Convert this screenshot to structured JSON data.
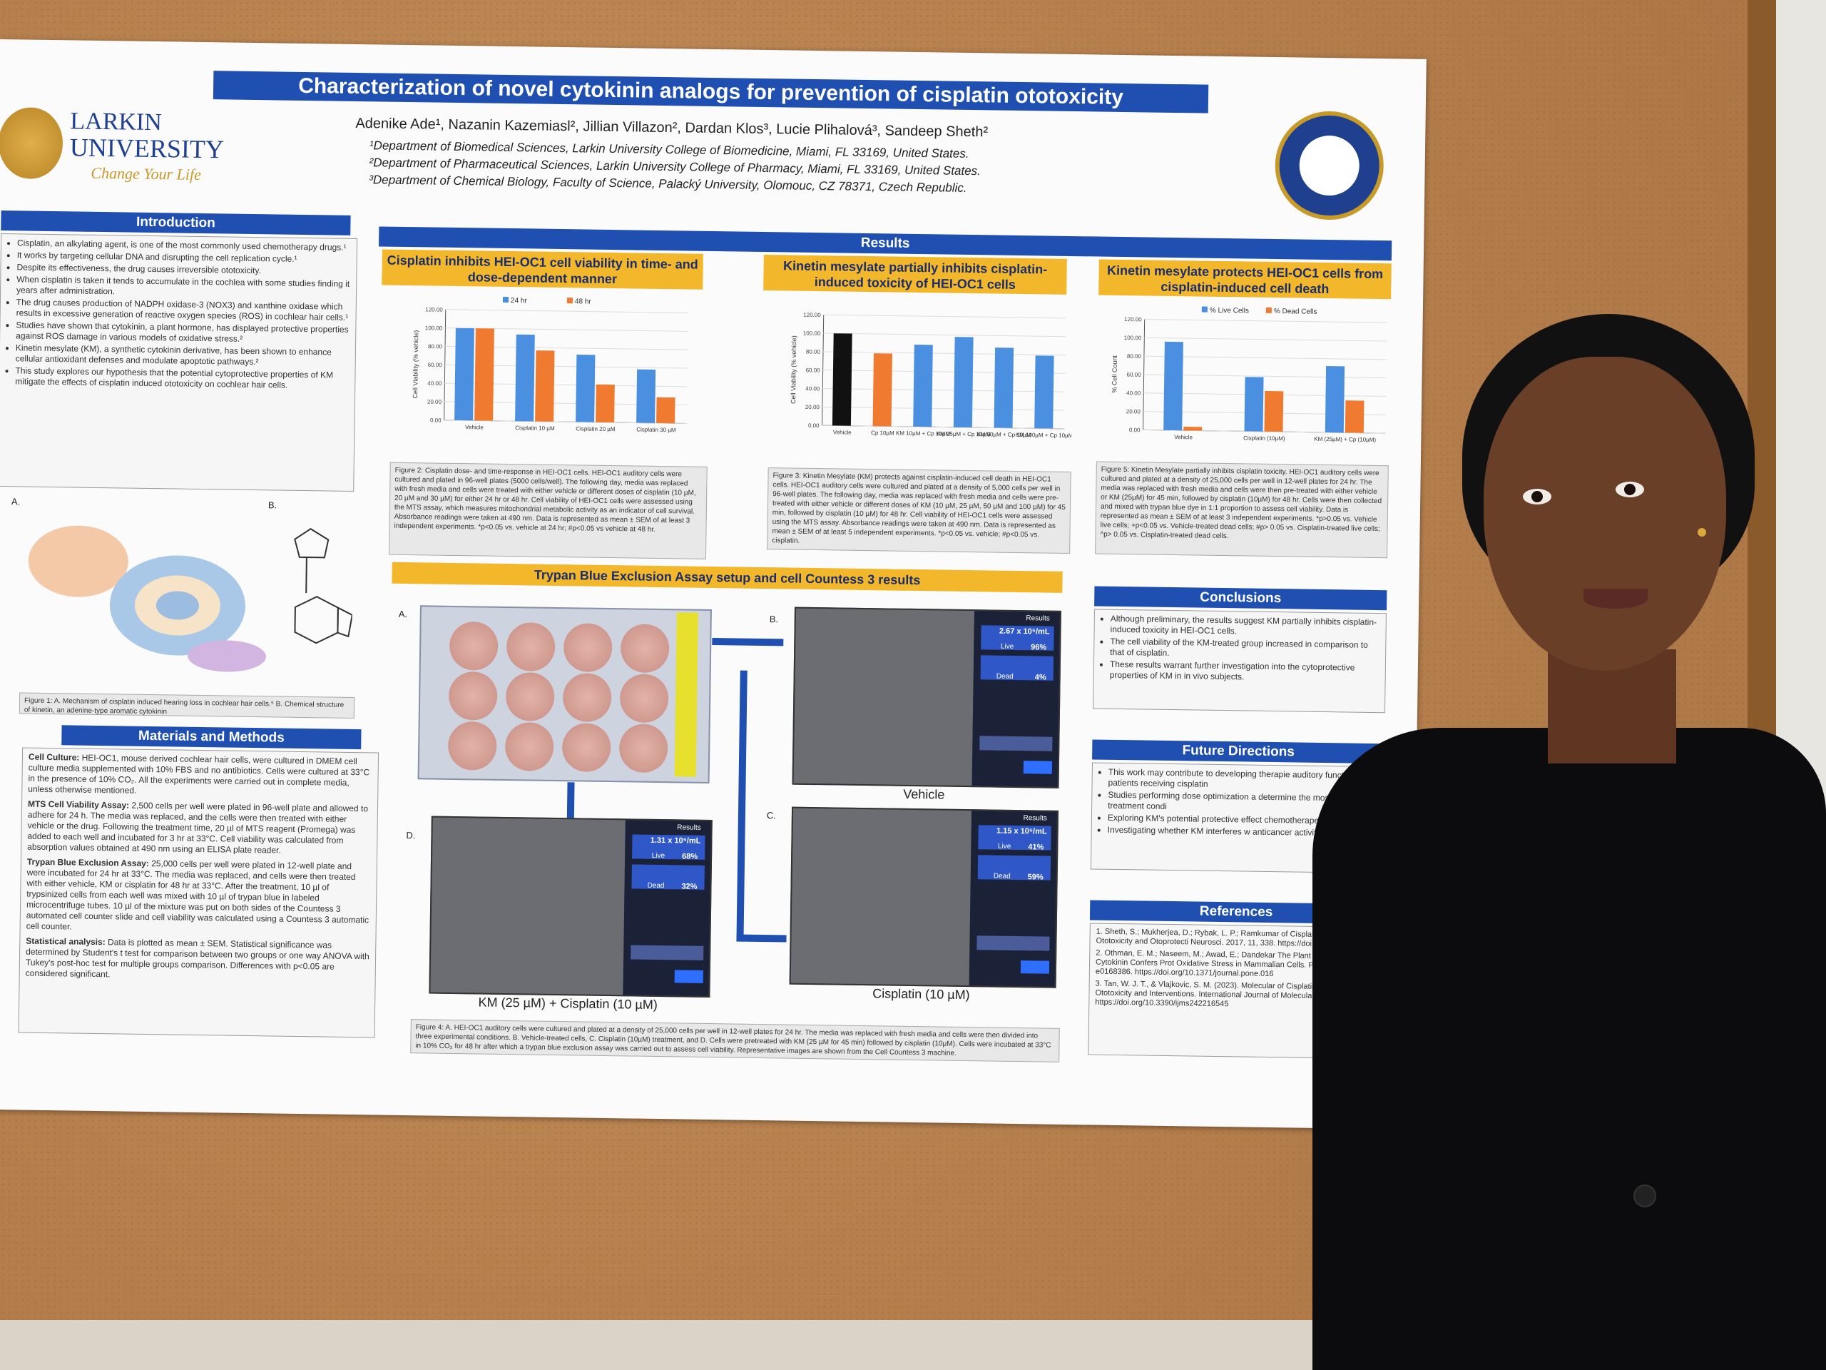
{
  "poster": {
    "title": "Characterization of novel cytokinin analogs for prevention of cisplatin ototoxicity",
    "authors": "Adenike Ade¹, Nazanin Kazemiasl², Jillian Villazon², Dardan Klos³, Lucie Plihalová³, Sandeep Sheth²",
    "affiliations": [
      "¹Department of Biomedical Sciences, Larkin University College of Biomedicine, Miami, FL 33169, United States.",
      "²Department of Pharmaceutical Sciences, Larkin University College of Pharmacy, Miami, FL 33169, United States.",
      "³Department of Chemical Biology, Faculty of Science, Palacký University, Olomouc, CZ 78371, Czech Republic."
    ],
    "logo": {
      "line1": "LARKIN",
      "line2": "UNIVERSITY",
      "tagline": "Change Your Life"
    },
    "sections": {
      "introduction": "Introduction",
      "results": "Results",
      "materials": "Materials and Methods",
      "conclusions": "Conclusions",
      "future": "Future Directions",
      "references": "References"
    },
    "intro_items": [
      "Cisplatin, an alkylating agent, is one of the most commonly used chemotherapy drugs.¹",
      "It works by targeting cellular DNA and disrupting the cell replication cycle.¹",
      "Despite its effectiveness, the drug causes irreversible ototoxicity.",
      "When cisplatin is taken it tends to accumulate in the cochlea with some studies finding it years after administration.",
      "The drug causes production of NADPH oxidase-3 (NOX3) and xanthine oxidase which results in excessive generation of reactive oxygen species (ROS) in cochlear hair cells.¹",
      "Studies have shown that cytokinin, a plant hormone, has displayed protective properties against ROS damage in various models of oxidative stress.²",
      "Kinetin mesylate (KM), a synthetic cytokinin derivative, has been shown to enhance cellular antioxidant defenses and modulate apoptotic pathways.²",
      "This study explores our hypothesis that the potential cytoprotective properties of KM mitigate the effects of cisplatin induced ototoxicity on cochlear hair cells."
    ],
    "fig1_caption": "Figure 1: A. Mechanism of cisplatin induced hearing loss in cochlear hair cells.⁵ B. Chemical structure of kinetin, an adenine-type aromatic cytokinin",
    "results_subheads": [
      "Cisplatin inhibits HEI-OC1 cell viability in time- and dose-dependent manner",
      "Kinetin mesylate partially inhibits cisplatin-induced toxicity of HEI-OC1 cells",
      "Kinetin mesylate protects HEI-OC1 cells from cisplatin-induced cell death"
    ],
    "trypan_head": "Trypan Blue Exclusion Assay setup and cell Countess 3 results",
    "methods": [
      {
        "head": "Cell Culture:",
        "text": "HEI-OC1, mouse derived cochlear hair cells, were cultured in DMEM cell culture media supplemented with 10% FBS and no antibiotics. Cells were cultured at 33°C in the presence of 10% CO₂. All the experiments were carried out in complete media, unless otherwise mentioned."
      },
      {
        "head": "MTS Cell Viability Assay:",
        "text": "2,500 cells per well were plated in 96-well plate and allowed to adhere for 24 h. The media was replaced, and the cells were then treated with either vehicle or the drug. Following the treatment time, 20 µl of MTS reagent (Promega) was added to each well and incubated for 3 hr at 33°C. Cell viability was calculated from absorption values obtained at 490 nm using an ELISA plate reader."
      },
      {
        "head": "Trypan Blue Exclusion Assay:",
        "text": "25,000 cells per well were plated in 12-well plate and were incubated for 24 hr at 33°C. The media was replaced, and cells were then treated with either vehicle, KM or cisplatin for 48 hr at 33°C. After the treatment, 10 µl of trypsinized cells from each well was mixed with 10 µl of trypan blue in labeled microcentrifuge tubes. 10 µl of the mixture was put on both sides of the Countess 3 automated cell counter slide and cell viability was calculated using a Countess 3 automatic cell counter."
      },
      {
        "head": "Statistical analysis:",
        "text": "Data is plotted as mean ± SEM. Statistical significance was determined by Student's t test for comparison between two groups or one way ANOVA with Tukey's post-hoc test for multiple groups comparison. Differences with p<0.05 are considered significant."
      }
    ],
    "conclusions": [
      "Although preliminary, the results suggest KM partially inhibits cisplatin-induced toxicity in HEI-OC1 cells.",
      "The cell viability of the KM-treated group increased in comparison to that of cisplatin.",
      "These results warrant further investigation into the cytoprotective properties of KM in in vivo subjects."
    ],
    "future": [
      "This work may contribute to developing therapie auditory function in patients receiving cisplatin",
      "Studies performing dose optimization a determine the most effective treatment condi",
      "Exploring KM's potential protective effect chemotherapeutic toxicities.",
      "Investigating whether KM interferes w anticancer activity."
    ],
    "references": [
      "1. Sheth, S.; Mukherjea, D.; Rybak, L. P.; Ramkumar of Cisplatin-Induced Ototoxicity and Otoprotecti Neurosci. 2017, 11, 338. https://doi.org/10.3389/fn",
      "2. Othman, E. M.; Naseem, M.; Awad, E.; Dandekar The Plant Hormone Cytokinin Confers Prot Oxidative Stress in Mammalian Cells. PLoS One e0168386. https://doi.org/10.1371/journal.pone.016",
      "3. Tan, W. J. T., & Vlajkovic, S. M. (2023). Molecular of Cisplatin-Induced Ototoxicity and Interventions. International Journal of Molecular Sci 16545. https://doi.org/10.3390/ijms242216545"
    ],
    "fig2_caption": "Figure 2: Cisplatin dose- and time-response in HEI-OC1 cells. HEI-OC1 auditory cells were cultured and plated in 96-well plates (5000 cells/well). The following day, media was replaced with fresh media and cells were treated with either vehicle or different doses of cisplatin (10 µM, 20 µM and 30 µM) for either 24 hr or 48 hr. Cell viability of HEI-OC1 cells were assessed using the MTS assay, which measures mitochondrial metabolic activity as an indicator of cell survival. Absorbance readings were taken at 490 nm. Data is represented as mean ± SEM of at least 3 independent experiments. *p<0.05 vs. vehicle at 24 hr; #p<0.05 vs vehicle at 48 hr.",
    "fig3_caption": "Figure 3: Kinetin Mesylate (KM) protects against cisplatin-induced cell death in HEI-OC1 cells. HEI-OC1 auditory cells were cultured and plated at a density of 5,000 cells per well in 96-well plates. The following day, media was replaced with fresh media and cells were pre-treated with either vehicle or different doses of KM (10 µM, 25 µM, 50 µM and 100 µM) for 45 min, followed by cisplatin (10 µM) for 48 hr. Cell viability of HEI-OC1 cells were assessed using the MTS assay. Absorbance readings were taken at 490 nm. Data is represented as mean ± SEM of at least 5 independent experiments. *p<0.05 vs. vehicle; #p<0.05 vs. cisplatin.",
    "fig5_caption": "Figure 5: Kinetin Mesylate partially inhibits cisplatin toxicity. HEI-OC1 auditory cells were cultured and plated at a density of 25,000 cells per well in 12-well plates for 24 hr. The media was replaced with fresh media and cells were then pre-treated with either vehicle or KM (25µM) for 45 min, followed by cisplatin (10µM) for 48 hr. Cells were then collected and mixed with trypan blue dye in 1:1 proportion to assess cell viability. Data is represented as mean ± SEM of at least 3 independent experiments. *p>0.05 vs. Vehicle live cells; +p<0.05 vs. Vehicle-treated dead cells; #p> 0.05 vs. Cisplatin-treated live cells; ^p> 0.05 vs. Cisplatin-treated dead cells.",
    "fig4_caption": "Figure 4: A. HEI-OC1 auditory cells were cultured and plated at a density of 25,000 cells per well in 12-well plates for 24 hr. The media was replaced with fresh media and cells were then divided into three experimental conditions. B. Vehicle-treated cells, C. Cisplatin (10µM) treatment, and D. Cells were pretreated with KM (25 µM for 45 min) followed by cisplatin (10µM). Cells were incubated at 33°C in 10% CO₂ for 48 hr after which a trypan blue exclusion assay was carried out to assess cell viability. Representative images are shown from the Cell Countess 3 machine.",
    "micro_labels": [
      "Vehicle",
      "Cisplatin (10 µM)",
      "KM (25 µM) + Cisplatin (10 µM)"
    ],
    "counts": [
      {
        "total": "2.67 x 10⁵/mL",
        "live": "96%",
        "dead": "4%"
      },
      {
        "total": "1.15 x 10⁵/mL",
        "live": "41%",
        "dead": "59%"
      },
      {
        "total": "1.31 x 10⁵/mL",
        "live": "68%",
        "dead": "32%"
      }
    ],
    "results_word": "Results",
    "live_word": "Live",
    "dead_word": "Dead",
    "panel_letters": [
      "A.",
      "B.",
      "C.",
      "D."
    ],
    "fig1_letters": [
      "A.",
      "B."
    ]
  },
  "chart_data": [
    {
      "type": "bar",
      "ylabel": "Cell Viability (% vehicle)",
      "ylim": [
        0,
        120
      ],
      "categories": [
        "Vehicle",
        "Cisplatin 10 µM",
        "Cisplatin 20 µM",
        "Cisplatin 30 µM"
      ],
      "series": [
        {
          "name": "24 hr",
          "values": [
            100,
            94,
            73,
            58
          ],
          "color": "#4a8fe0"
        },
        {
          "name": "48 hr",
          "values": [
            100,
            77,
            41,
            28
          ],
          "color": "#f07a30"
        }
      ]
    },
    {
      "type": "bar",
      "ylabel": "Cell Viability (% vehicle)",
      "ylim": [
        0,
        120
      ],
      "categories": [
        "Vehicle",
        "Cp 10µM",
        "KM 10µM + Cp 10µM",
        "KM 25µM + Cp 10µM",
        "KM 50µM + Cp 10µM",
        "KM 100µM + Cp 10µM"
      ],
      "series": [
        {
          "values": [
            100,
            79,
            89,
            98,
            87,
            79
          ],
          "colors": [
            "#111111",
            "#f07a30",
            "#4a8fe0",
            "#4a8fe0",
            "#4a8fe0",
            "#4a8fe0"
          ]
        }
      ]
    },
    {
      "type": "bar",
      "ylabel": "% Cell Count",
      "ylim": [
        0,
        120
      ],
      "categories": [
        "Vehicle",
        "Cisplatin (10µM)",
        "KM (25µM) + Cp (10µM)"
      ],
      "series": [
        {
          "name": "% Live Cells",
          "values": [
            96,
            59,
            72
          ],
          "color": "#4a8fe0"
        },
        {
          "name": "% Dead Cells",
          "values": [
            4,
            44,
            35
          ],
          "color": "#f07a30"
        }
      ]
    }
  ]
}
